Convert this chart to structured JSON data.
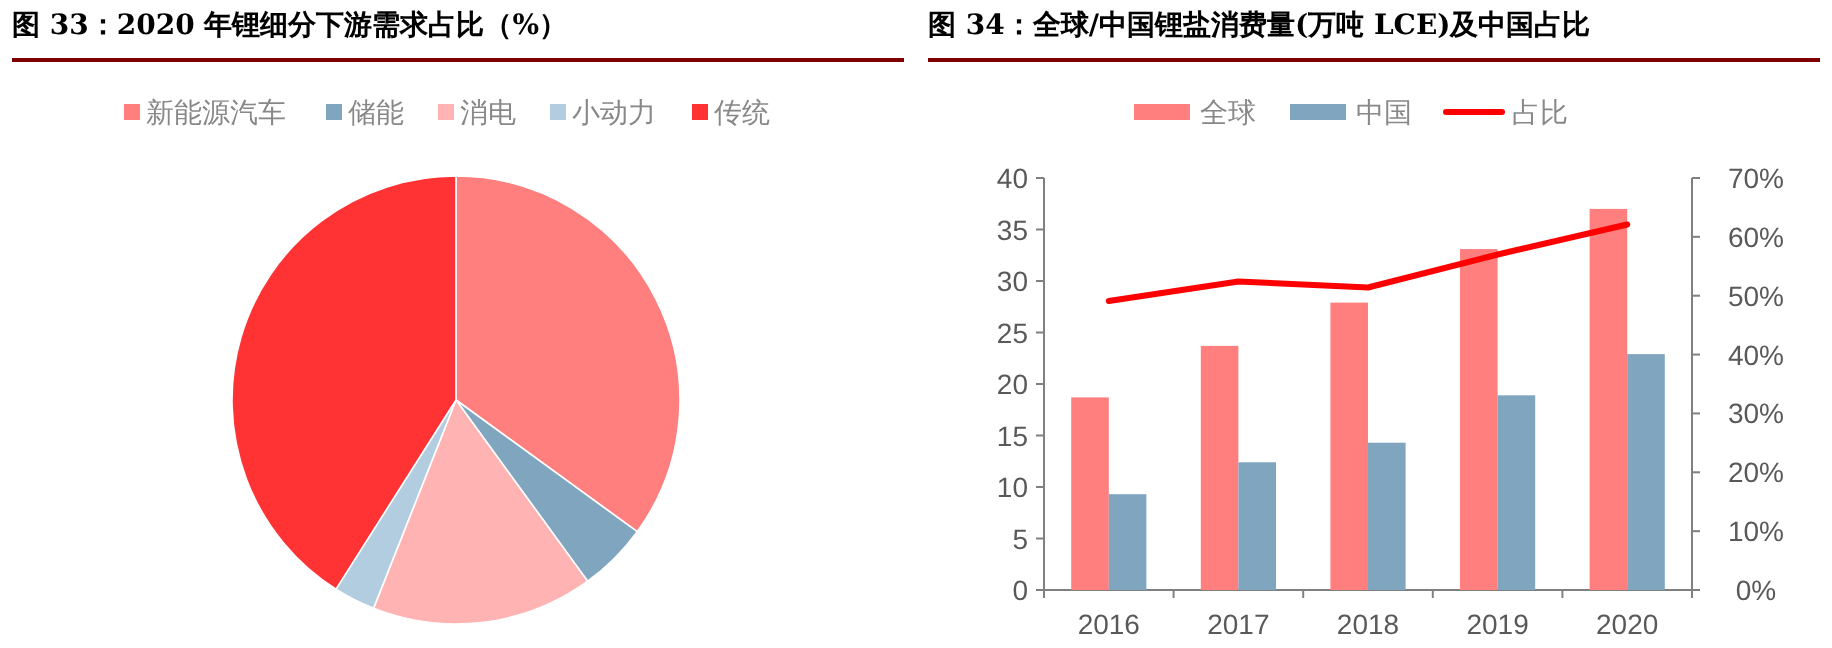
{
  "chart_data": [
    {
      "type": "pie",
      "title": "图 33：2020 年锂细分下游需求占比（%）",
      "categories": [
        "新能源汽车",
        "储能",
        "消电",
        "小动力",
        "传统"
      ],
      "values": [
        35,
        5,
        16,
        3,
        41
      ],
      "colors": [
        "#ff7f7f",
        "#7fa5bf",
        "#ffb3b3",
        "#b3cde0",
        "#ff3333"
      ],
      "legend": "top"
    },
    {
      "type": "bar",
      "title": "图 34：全球/中国锂盐消费量(万吨 LCE)及中国占比",
      "categories": [
        "2016",
        "2017",
        "2018",
        "2019",
        "2020"
      ],
      "legend": "top",
      "ylim": [
        0,
        40
      ],
      "yticks": [
        0,
        5,
        10,
        15,
        20,
        25,
        30,
        35,
        40
      ],
      "y2lim": [
        0,
        70
      ],
      "y2ticks": [
        {
          "value": 0,
          "label": "0%"
        },
        {
          "value": 10,
          "label": "10%"
        },
        {
          "value": 20,
          "label": "20%"
        },
        {
          "value": 30,
          "label": "30%"
        },
        {
          "value": 40,
          "label": "40%"
        },
        {
          "value": 50,
          "label": "50%"
        },
        {
          "value": 60,
          "label": "60%"
        },
        {
          "value": 70,
          "label": "70%"
        }
      ],
      "series": [
        {
          "name": "全球",
          "color": "#ff7f7f",
          "values": [
            18.7,
            23.7,
            27.9,
            33.1,
            37.0
          ]
        },
        {
          "name": "中国",
          "color": "#7fa5bf",
          "values": [
            9.3,
            12.4,
            14.3,
            18.9,
            22.9
          ]
        },
        {
          "name": "占比",
          "type": "line",
          "axis": "y2",
          "color": "#ff0000",
          "values": [
            49.1,
            52.4,
            51.4,
            57.0,
            62.1
          ]
        }
      ]
    }
  ]
}
